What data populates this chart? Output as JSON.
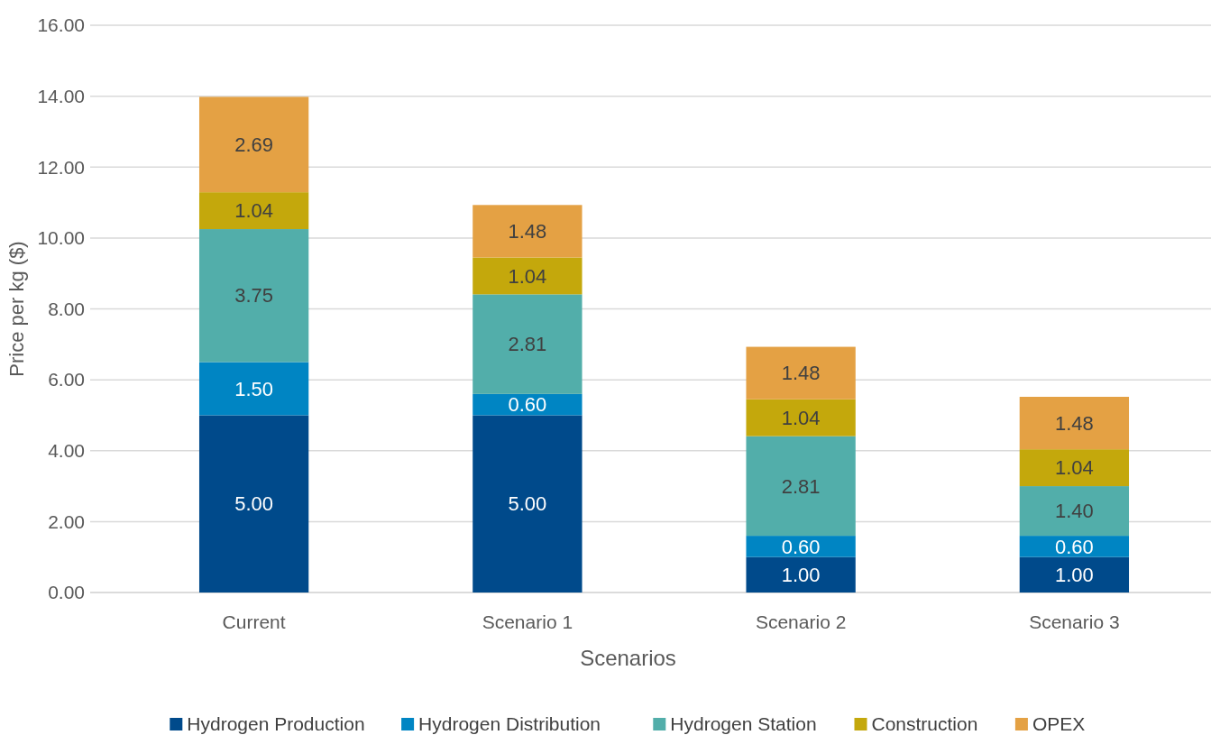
{
  "chart_data": {
    "type": "bar",
    "stacked": true,
    "xlabel": "Scenarios",
    "ylabel": "Price per kg ($)",
    "categories": [
      "Current",
      "Scenario 1",
      "Scenario 2",
      "Scenario 3"
    ],
    "series": [
      {
        "name": "Hydrogen Production",
        "color": "#004a8b",
        "values": [
          5.0,
          5.0,
          1.0,
          1.0
        ]
      },
      {
        "name": "Hydrogen Distribution",
        "color": "#0085c3",
        "values": [
          1.5,
          0.6,
          0.6,
          0.6
        ]
      },
      {
        "name": "Hydrogen Station",
        "color": "#52aeaa",
        "values": [
          3.75,
          2.81,
          2.81,
          1.4
        ]
      },
      {
        "name": "Construction",
        "color": "#c4a80c",
        "values": [
          1.04,
          1.04,
          1.04,
          1.04
        ]
      },
      {
        "name": "OPEX",
        "color": "#e4a144",
        "values": [
          2.69,
          1.48,
          1.48,
          1.48
        ]
      }
    ],
    "value_labels": [
      [
        "5.00",
        "5.00",
        "1.00",
        "1.00"
      ],
      [
        "1.50",
        "0.60",
        "0.60",
        "0.60"
      ],
      [
        "3.75",
        "2.81",
        "2.81",
        "1.40"
      ],
      [
        "1.04",
        "1.04",
        "1.04",
        "1.04"
      ],
      [
        "2.69",
        "1.48",
        "1.48",
        "1.48"
      ]
    ],
    "ylim": [
      0,
      16
    ],
    "yticks": [
      {
        "value": 0,
        "label": "0.00"
      },
      {
        "value": 2,
        "label": "2.00"
      },
      {
        "value": 4,
        "label": "4.00"
      },
      {
        "value": 6,
        "label": "6.00"
      },
      {
        "value": 8,
        "label": "8.00"
      },
      {
        "value": 10,
        "label": "10.00"
      },
      {
        "value": 12,
        "label": "12.00"
      },
      {
        "value": 14,
        "label": "14.00"
      },
      {
        "value": 16,
        "label": "16.00"
      }
    ],
    "grid": "y",
    "legend": "bottom"
  }
}
